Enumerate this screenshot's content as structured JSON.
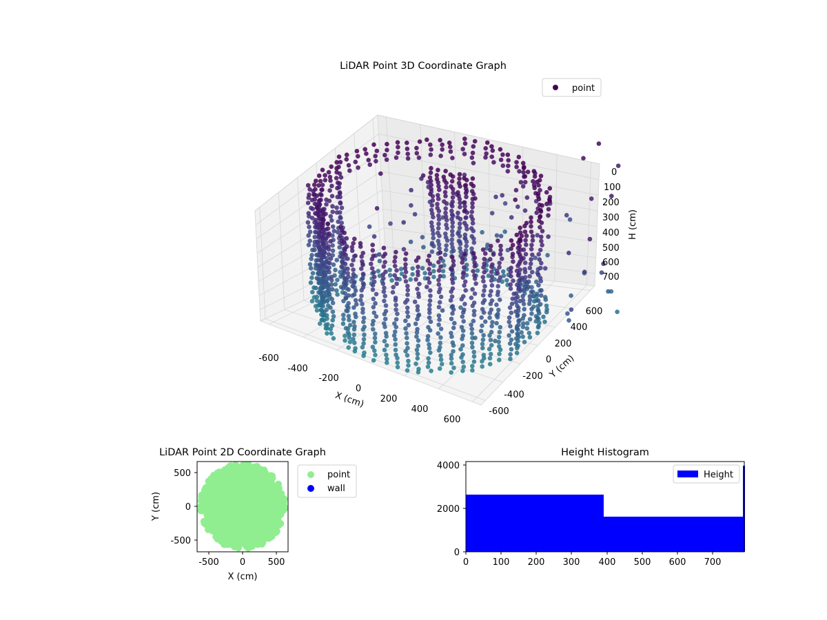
{
  "chart_data": [
    {
      "type": "scatter",
      "projection": "3d",
      "title": "LiDAR Point 3D Coordinate Graph",
      "xlabel": "X (cm)",
      "ylabel": "Y (cm)",
      "zlabel": "H (cm)",
      "x_ticks": [
        "-600",
        "-400",
        "-200",
        "0",
        "200",
        "400",
        "600"
      ],
      "y_ticks": [
        "-600",
        "-400",
        "-200",
        "0",
        "200",
        "400",
        "600"
      ],
      "z_ticks": [
        "0",
        "100",
        "200",
        "300",
        "400",
        "500",
        "600",
        "700"
      ],
      "xlim": [
        -650,
        650
      ],
      "ylim": [
        -650,
        650
      ],
      "zlim": [
        0,
        780
      ],
      "z_axis_inverted": true,
      "grid": true,
      "legend": {
        "placement": "upper right",
        "entries": [
          "point"
        ]
      },
      "colormap": "viridis (colored by height)",
      "series": [
        {
          "name": "point",
          "description": "cylindrical wall of points, radius ~600 cm, heights 0-780 cm, with a wall-panel fragment near the back and scattered outliers",
          "points_sample": [
            {
              "x": -600,
              "y": -200,
              "h": 100
            },
            {
              "x": -400,
              "y": -450,
              "h": 50
            },
            {
              "x": 0,
              "y": -600,
              "h": 0
            },
            {
              "x": 400,
              "y": -450,
              "h": 50
            },
            {
              "x": 600,
              "y": 0,
              "h": 100
            },
            {
              "x": 450,
              "y": 400,
              "h": 150
            },
            {
              "x": 0,
              "y": 600,
              "h": 200
            },
            {
              "x": -450,
              "y": 400,
              "h": 150
            },
            {
              "x": 0,
              "y": -600,
              "h": 780
            },
            {
              "x": 600,
              "y": 0,
              "h": 780
            },
            {
              "x": -600,
              "y": 0,
              "h": 780
            },
            {
              "x": 0,
              "y": 600,
              "h": 780
            }
          ]
        }
      ]
    },
    {
      "type": "scatter",
      "title": "LiDAR Point 2D Coordinate Graph",
      "xlabel": "X (cm)",
      "ylabel": "Y (cm)",
      "x_ticks": [
        "-500",
        "0",
        "500"
      ],
      "y_ticks": [
        "500",
        "0",
        "-500"
      ],
      "xlim": [
        -680,
        680
      ],
      "ylim": [
        -680,
        680
      ],
      "legend": {
        "placement": "outside right",
        "entries": [
          "point",
          "wall"
        ]
      },
      "series": [
        {
          "name": "point",
          "color": "#90ee90",
          "description": "dense filled disk of points, radius ~600 cm"
        },
        {
          "name": "wall",
          "color": "#0000ff",
          "values": []
        }
      ]
    },
    {
      "type": "bar",
      "title": "Height Histogram",
      "x_ticks": [
        "0",
        "100",
        "200",
        "300",
        "400",
        "500",
        "600",
        "700"
      ],
      "y_ticks": [
        "0",
        "2000",
        "4000"
      ],
      "xlim": [
        0,
        790
      ],
      "ylim": [
        0,
        4200
      ],
      "legend": {
        "placement": "upper right",
        "entries": [
          "Height"
        ]
      },
      "series": [
        {
          "name": "Height",
          "color": "#0000ff",
          "bins": [
            {
              "from": 0,
              "to": 390,
              "count": 2650
            },
            {
              "from": 390,
              "to": 785,
              "count": 1620
            },
            {
              "from": 785,
              "to": 790,
              "count": 4000
            }
          ]
        }
      ]
    }
  ]
}
